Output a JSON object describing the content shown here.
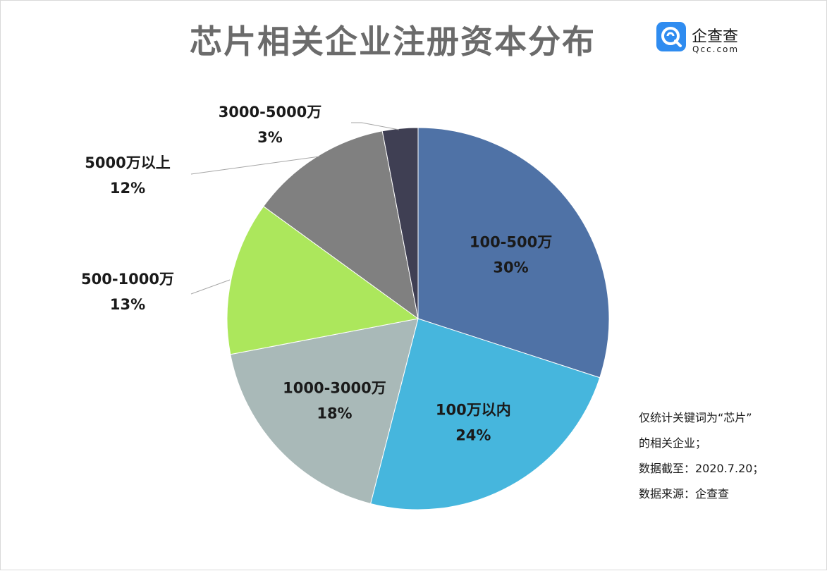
{
  "chart_data": {
    "type": "pie",
    "title": "芯片相关企业注册资本分布",
    "slices": [
      {
        "label": "100-500万",
        "value": 30,
        "value_label": "30%",
        "color": "#4f72a6"
      },
      {
        "label": "100万以内",
        "value": 24,
        "value_label": "24%",
        "color": "#46b6dd"
      },
      {
        "label": "1000-3000万",
        "value": 18,
        "value_label": "18%",
        "color": "#a9b9b8"
      },
      {
        "label": "500-1000万",
        "value": 13,
        "value_label": "13%",
        "color": "#ace75c"
      },
      {
        "label": "5000万以上",
        "value": 12,
        "value_label": "12%",
        "color": "#808080"
      },
      {
        "label": "3000-5000万",
        "value": 3,
        "value_label": "3%",
        "color": "#3f3f53"
      }
    ]
  },
  "logo": {
    "name": "企查查",
    "domain": "Qcc.com",
    "accent": "#2f8cf0"
  },
  "notes": [
    "仅统计关键词为“芯片”",
    "的相关企业；",
    "数据截至：2020.7.20；",
    "数据来源：企查查"
  ]
}
